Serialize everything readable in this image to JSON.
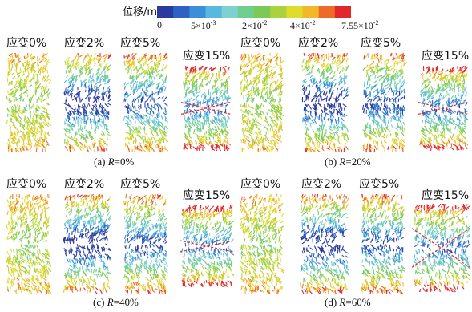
{
  "colorbar": {
    "title": "位移/m",
    "labels": [
      "0",
      "5×10",
      "2×10",
      "4×10",
      "7.55×10"
    ],
    "exponents": [
      "",
      "-3",
      "-2",
      "-2",
      "-2"
    ],
    "colors": [
      "#2a3a9e",
      "#2d62c2",
      "#3b8fd8",
      "#57b9e0",
      "#7fd1cf",
      "#6fcf8e",
      "#7cc957",
      "#a9d23c",
      "#dedc2c",
      "#f3b82a",
      "#ef6a28",
      "#e2262a"
    ]
  },
  "panels": [
    {
      "caption_prefix": "(a) ",
      "var": "R",
      "caption_value": "=0%",
      "strains": [
        "应变0%",
        "应变2%",
        "应变5%",
        "应变15%"
      ]
    },
    {
      "caption_prefix": "(b) ",
      "var": "R",
      "caption_value": "=20%",
      "strains": [
        "应变0%",
        "应变2%",
        "应变5%",
        "应变15%"
      ]
    },
    {
      "caption_prefix": "(c) ",
      "var": "R",
      "caption_value": "=40%",
      "strains": [
        "应变0%",
        "应变2%",
        "应变5%",
        "应变15%"
      ]
    },
    {
      "caption_prefix": "(d) ",
      "var": "R",
      "caption_value": "=60%",
      "strains": [
        "应变0%",
        "应变2%",
        "应变5%",
        "应变15%"
      ]
    }
  ]
}
